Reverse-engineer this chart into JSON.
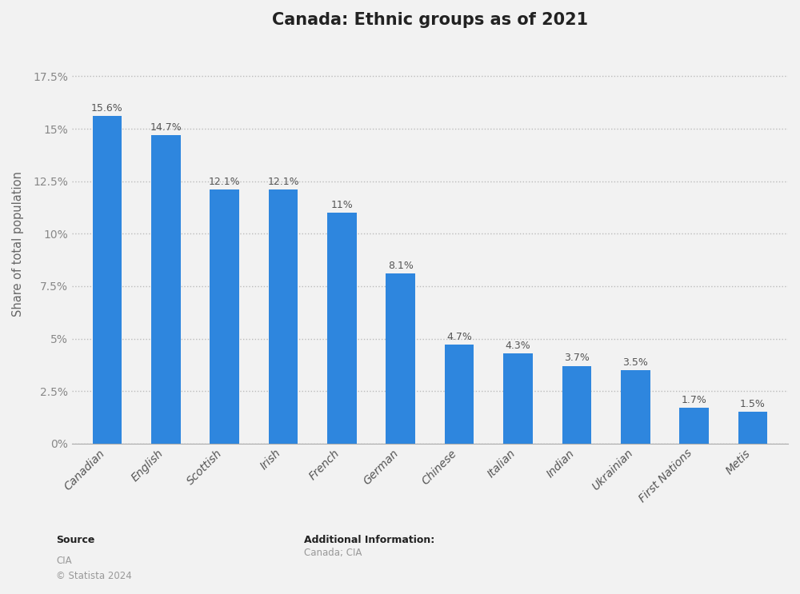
{
  "title": "Canada: Ethnic groups as of 2021",
  "categories": [
    "Canadian",
    "English",
    "Scottish",
    "Irish",
    "French",
    "German",
    "Chinese",
    "Italian",
    "Indian",
    "Ukrainian",
    "First Nations",
    "Metis"
  ],
  "values": [
    15.6,
    14.7,
    12.1,
    12.1,
    11.0,
    8.1,
    4.7,
    4.3,
    3.7,
    3.5,
    1.7,
    1.5
  ],
  "labels": [
    "15.6%",
    "14.7%",
    "12.1%",
    "12.1%",
    "11%",
    "8.1%",
    "4.7%",
    "4.3%",
    "3.7%",
    "3.5%",
    "1.7%",
    "1.5%"
  ],
  "bar_color": "#2e86de",
  "background_color": "#f2f2f2",
  "ylabel": "Share of total population",
  "yticks": [
    0,
    2.5,
    5.0,
    7.5,
    10.0,
    12.5,
    15.0,
    17.5
  ],
  "ytick_labels": [
    "0%",
    "2.5%",
    "5%",
    "7.5%",
    "10%",
    "12.5%",
    "15%",
    "17.5%"
  ],
  "ylim": [
    0,
    19.0
  ],
  "title_fontsize": 15,
  "source_label": "Source",
  "source_body": "CIA\n© Statista 2024",
  "additional_label": "Additional Information:",
  "additional_body": "Canada; CIA"
}
